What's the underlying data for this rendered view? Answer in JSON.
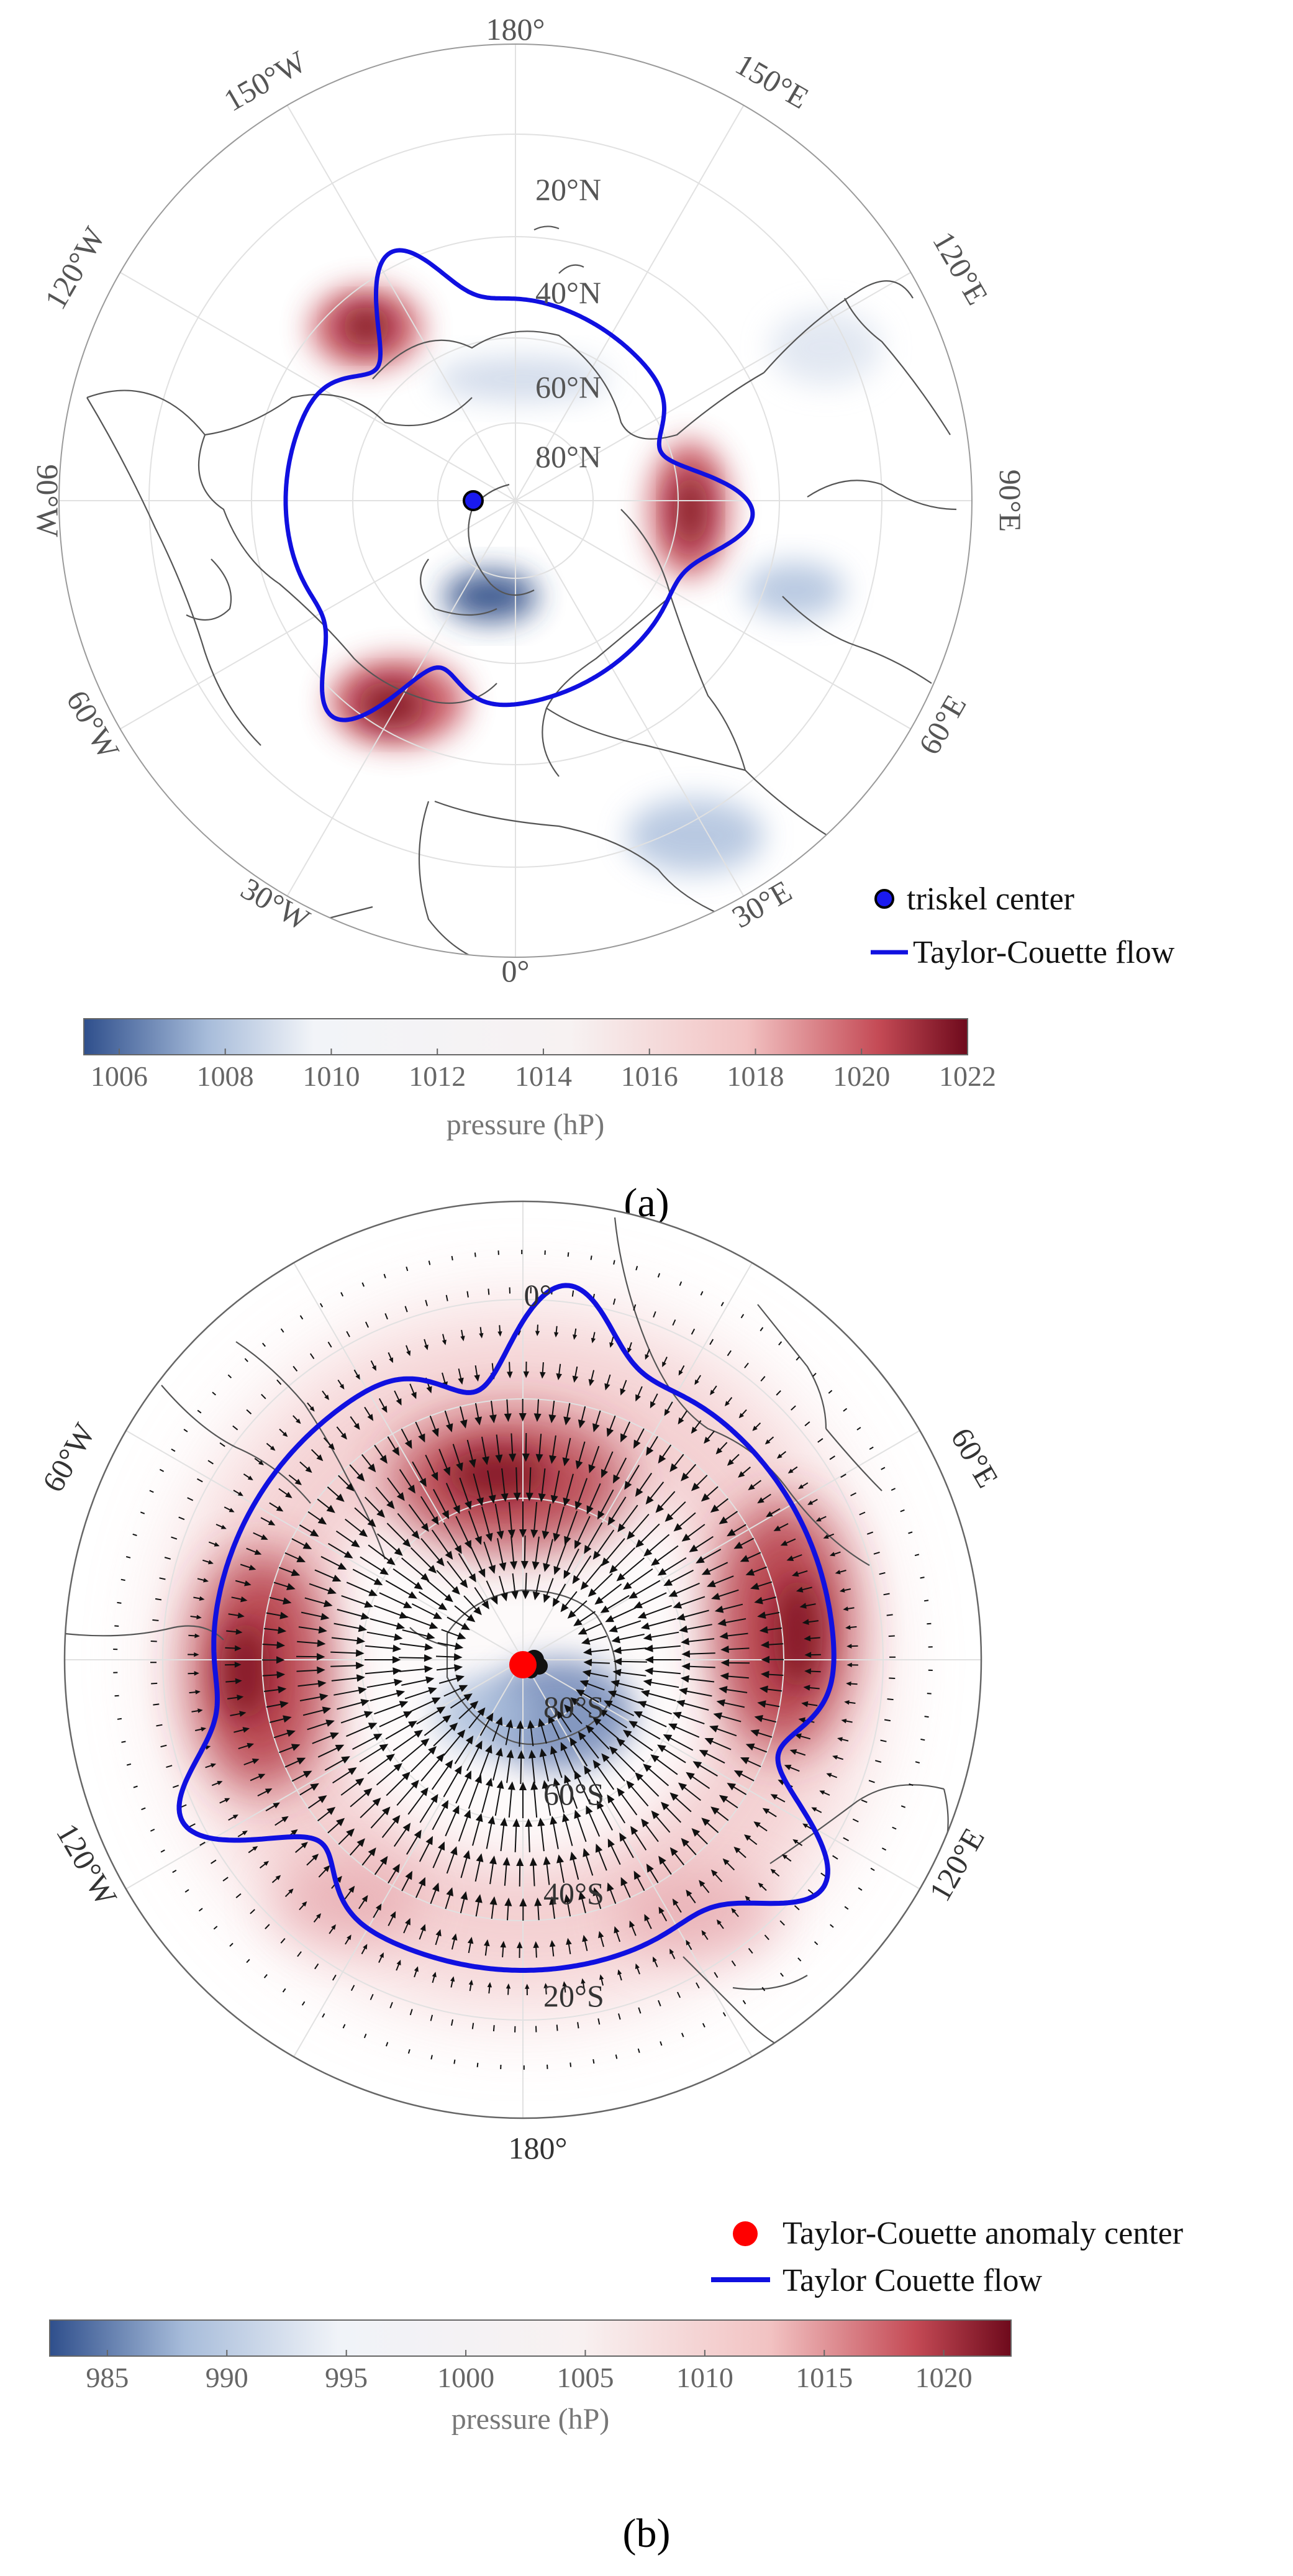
{
  "panel_a": {
    "caption": "(a)",
    "lon_labels": [
      "180°",
      "150°E",
      "120°E",
      "90°E",
      "60°E",
      "30°E",
      "0°",
      "30°W",
      "60°W",
      "90°W",
      "120°W",
      "150°W"
    ],
    "lat_labels": [
      "20°N",
      "40°N",
      "60°N",
      "80°N"
    ],
    "legend": {
      "center": "triskel center",
      "flow": "Taylor-Couette flow"
    },
    "colorbar": {
      "ticks": [
        "1006",
        "1008",
        "1010",
        "1012",
        "1014",
        "1016",
        "1018",
        "1020",
        "1022"
      ],
      "label": "pressure (hP)"
    }
  },
  "panel_b": {
    "caption": "(b)",
    "lon_labels": [
      "0°",
      "60°E",
      "120°E",
      "180°",
      "120°W",
      "60°W"
    ],
    "lat_labels": [
      "80°S",
      "60°S",
      "40°S",
      "20°S"
    ],
    "legend": {
      "center": "Taylor-Couette anomaly center",
      "flow": "Taylor Couette flow"
    },
    "colorbar": {
      "ticks": [
        "985",
        "990",
        "995",
        "1000",
        "1005",
        "1010",
        "1015",
        "1020"
      ],
      "label": "pressure (hP)"
    }
  },
  "colors": {
    "flow": "#1010e0",
    "center_b": "#ff0000",
    "high": "#7a0c1e",
    "low": "#2c4a84"
  }
}
